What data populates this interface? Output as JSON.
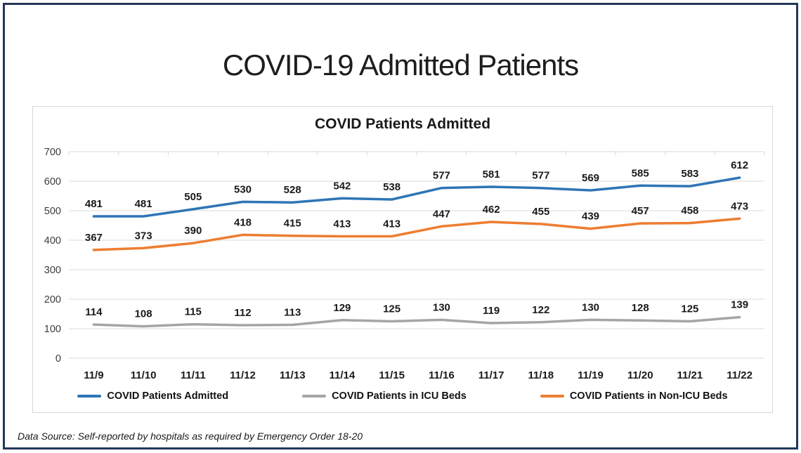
{
  "header": {
    "title": "COVID-19 Admitted Patients"
  },
  "chart_data": {
    "type": "line",
    "title": "COVID Patients Admitted",
    "categories": [
      "11/9",
      "11/10",
      "11/11",
      "11/12",
      "11/13",
      "11/14",
      "11/15",
      "11/16",
      "11/17",
      "11/18",
      "11/19",
      "11/20",
      "11/21",
      "11/22"
    ],
    "series": [
      {
        "name": "COVID Patients Admitted",
        "color": "#2E75B6",
        "values": [
          481,
          481,
          505,
          530,
          528,
          542,
          538,
          577,
          581,
          577,
          569,
          585,
          583,
          612
        ]
      },
      {
        "name": "COVID Patients in ICU Beds",
        "color": "#A5A5A5",
        "values": [
          114,
          108,
          115,
          112,
          113,
          129,
          125,
          130,
          119,
          122,
          130,
          128,
          125,
          139
        ]
      },
      {
        "name": "COVID Patients in Non-ICU Beds",
        "color": "#ED7D31",
        "values": [
          367,
          373,
          390,
          418,
          415,
          413,
          413,
          447,
          462,
          455,
          439,
          457,
          458,
          473
        ]
      }
    ],
    "ylim": [
      0,
      700
    ],
    "ytick_step": 100,
    "grid": "horizontal",
    "legend_position": "bottom",
    "data_labels": true
  },
  "footer": {
    "note": "Data Source: Self-reported by hospitals as required by Emergency Order 18-20"
  },
  "colors": {
    "frame_border": "#24375A",
    "grid_line": "#D9D9D9",
    "card_border": "#D7D7D7"
  }
}
